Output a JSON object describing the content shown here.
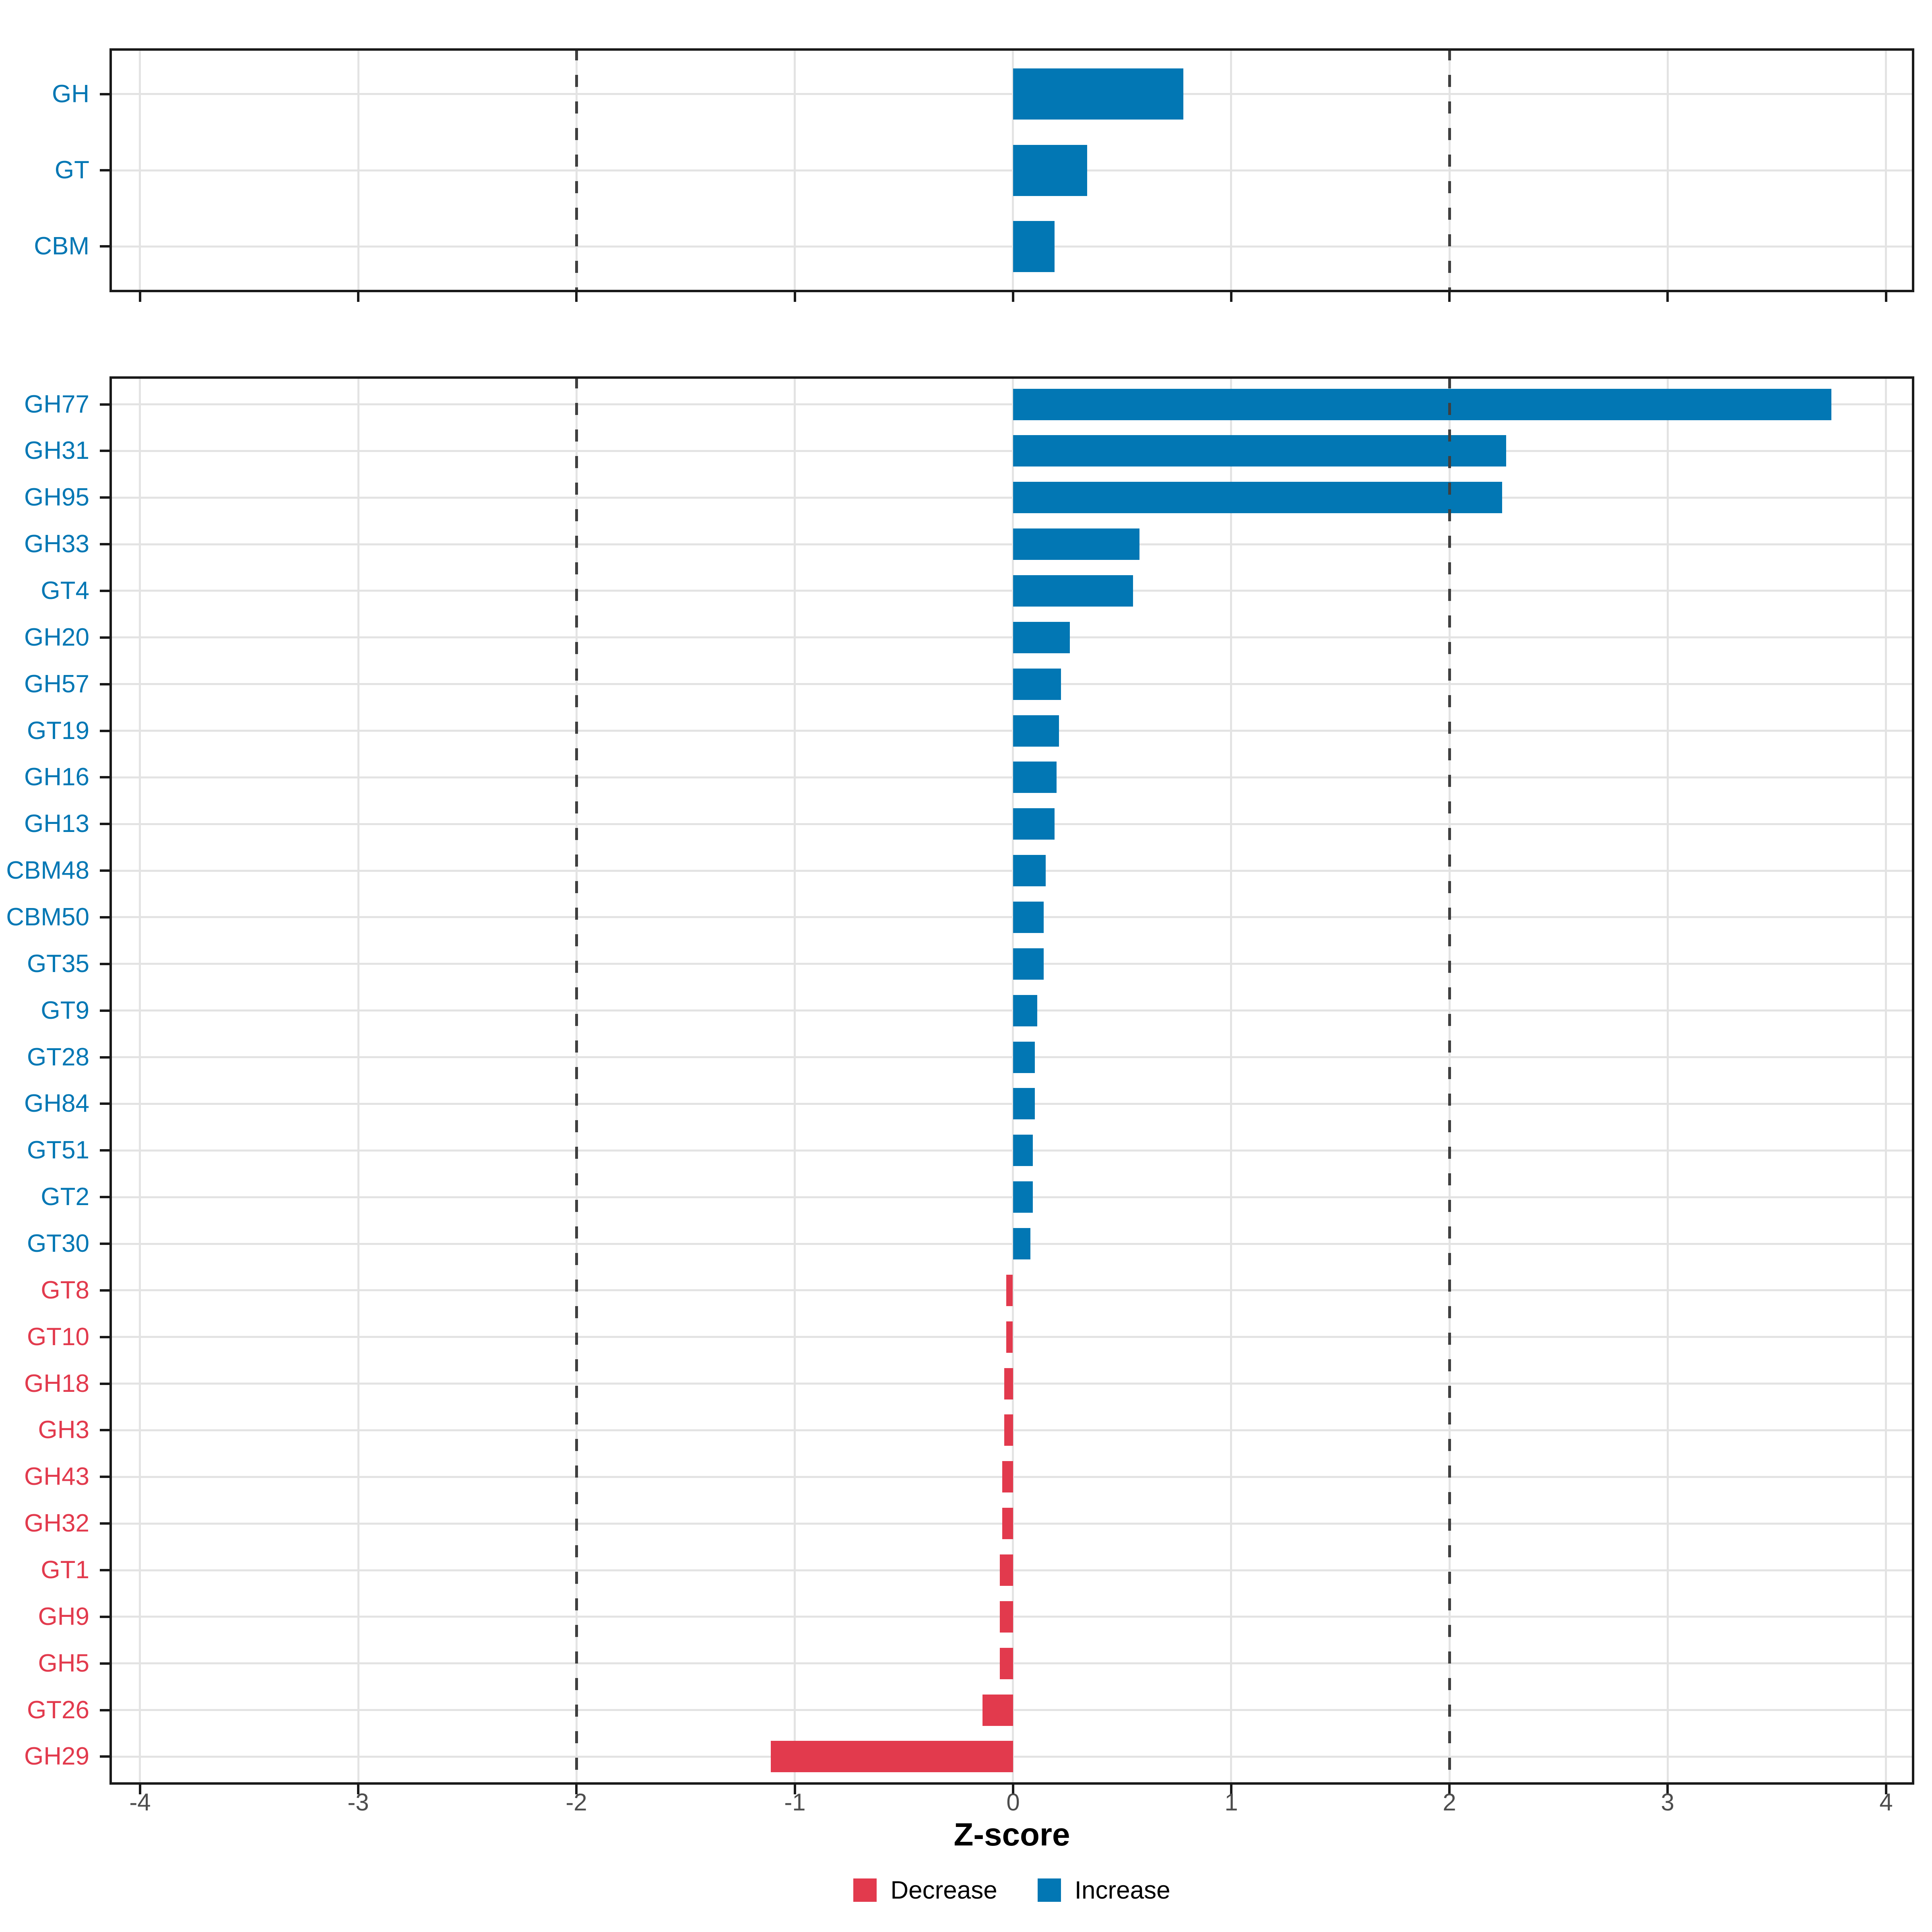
{
  "chart_data": {
    "type": "bar",
    "orientation": "horizontal",
    "title": "",
    "xlabel": "Z-score",
    "xlim": [
      -4.14,
      4.13
    ],
    "xticks": [
      -4,
      -3,
      -2,
      -1,
      0,
      1,
      2,
      3,
      4
    ],
    "xtick_labels": [
      "-4",
      "-3",
      "-2",
      "-1",
      "0",
      "1",
      "2",
      "3",
      "4"
    ],
    "reference_lines": [
      -2,
      2
    ],
    "grid": true,
    "legend_position": "bottom",
    "colors": {
      "increase": "#0277B4",
      "decrease": "#E23A4D"
    },
    "legend": [
      {
        "label": "Decrease",
        "key": "decrease",
        "color": "#E23A4D"
      },
      {
        "label": "Increase",
        "key": "increase",
        "color": "#0277B4"
      }
    ],
    "panels": [
      {
        "name": "cazyme-class",
        "categories": [
          "GH",
          "GT",
          "CBM"
        ],
        "values": [
          0.78,
          0.34,
          0.19
        ],
        "direction": [
          "increase",
          "increase",
          "increase"
        ]
      },
      {
        "name": "cazyme-family",
        "categories": [
          "GH77",
          "GH31",
          "GH95",
          "GH33",
          "GT4",
          "GH20",
          "GH57",
          "GT19",
          "GH16",
          "GH13",
          "CBM48",
          "CBM50",
          "GT35",
          "GT9",
          "GT28",
          "GH84",
          "GT51",
          "GT2",
          "GT30",
          "GT8",
          "GT10",
          "GH18",
          "GH3",
          "GH43",
          "GH32",
          "GT1",
          "GH9",
          "GH5",
          "GT26",
          "GH29"
        ],
        "values": [
          3.75,
          2.26,
          2.24,
          0.58,
          0.55,
          0.26,
          0.22,
          0.21,
          0.2,
          0.19,
          0.15,
          0.14,
          0.14,
          0.11,
          0.1,
          0.1,
          0.09,
          0.09,
          0.08,
          -0.03,
          -0.03,
          -0.04,
          -0.04,
          -0.05,
          -0.05,
          -0.06,
          -0.06,
          -0.06,
          -0.14,
          -1.11
        ],
        "direction": [
          "increase",
          "increase",
          "increase",
          "increase",
          "increase",
          "increase",
          "increase",
          "increase",
          "increase",
          "increase",
          "increase",
          "increase",
          "increase",
          "increase",
          "increase",
          "increase",
          "increase",
          "increase",
          "increase",
          "decrease",
          "decrease",
          "decrease",
          "decrease",
          "decrease",
          "decrease",
          "decrease",
          "decrease",
          "decrease",
          "decrease",
          "decrease"
        ]
      }
    ]
  }
}
